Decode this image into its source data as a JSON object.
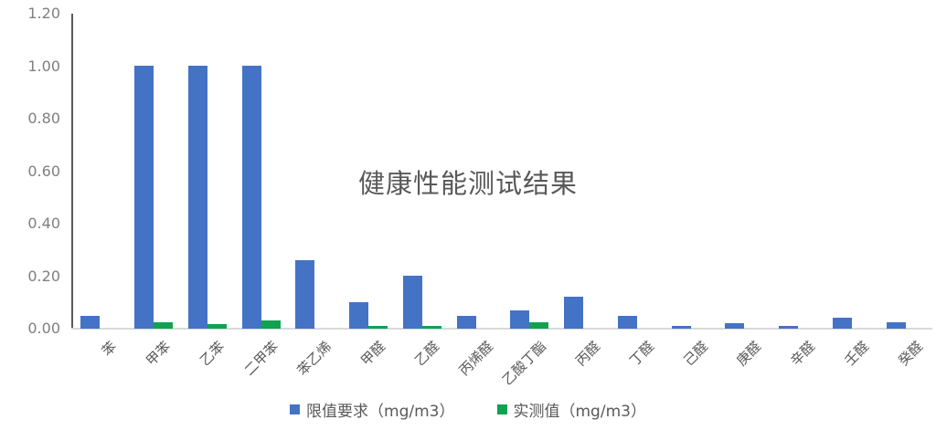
{
  "chart_data": {
    "type": "bar",
    "title": "健康性能测试结果",
    "categories": [
      "苯",
      "甲苯",
      "乙苯",
      "二甲苯",
      "苯乙烯",
      "甲醛",
      "乙醛",
      "丙烯醛",
      "乙酸丁酯",
      "丙醛",
      "丁醛",
      "己醛",
      "庚醛",
      "辛醛",
      "壬醛",
      "癸醛"
    ],
    "series": [
      {
        "name": "限值要求（mg/m3）",
        "color": "#4473c5",
        "values": [
          0.05,
          1.0,
          1.0,
          1.0,
          0.26,
          0.1,
          0.2,
          0.05,
          0.07,
          0.12,
          0.05,
          0.01,
          0.02,
          0.01,
          0.04,
          0.025
        ]
      },
      {
        "name": "实测值（mg/m3）",
        "color": "#10a251",
        "values": [
          0,
          0.025,
          0.018,
          0.03,
          0,
          0.01,
          0.012,
          0,
          0.025,
          0,
          0,
          0,
          0,
          0,
          0,
          0
        ]
      }
    ],
    "xlabel": "",
    "ylabel": "",
    "ylim": [
      0,
      1.2
    ],
    "yticks": [
      0,
      0.2,
      0.4,
      0.6,
      0.8,
      1.0,
      1.2
    ],
    "ytick_labels": [
      "0.00",
      "0.20",
      "0.40",
      "0.60",
      "0.80",
      "1.00",
      "1.20"
    ],
    "grid": false,
    "legend_position": "bottom",
    "colors": {
      "y_axis_line": "#595959",
      "x_axis_line": "#d9d9d9",
      "tick_text": "#7f7f7f",
      "category_text": "#595959",
      "title_text": "#595959",
      "background": "#ffffff"
    }
  }
}
